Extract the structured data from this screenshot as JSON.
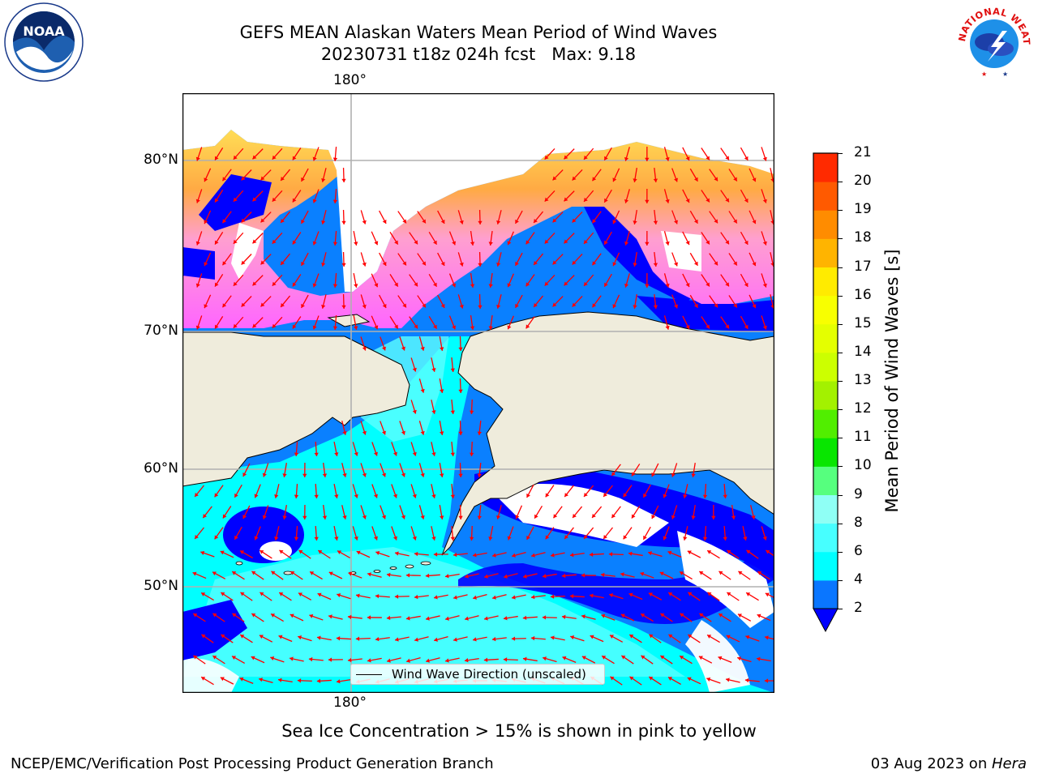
{
  "header": {
    "title_line1": "GEFS MEAN Alaskan Waters Mean Period of Wind Waves",
    "title_line2": "20230731 t18z 024h fcst   Max: 9.18"
  },
  "logos": {
    "left": {
      "name": "noaa-logo",
      "text": "NOAA"
    },
    "right": {
      "name": "national-weather-service-logo",
      "text": "NATIONAL WEATHER SERVICE"
    }
  },
  "map": {
    "lon_label_top": "180°",
    "lon_label_bottom": "180°",
    "lat_labels": [
      "80°N",
      "70°N",
      "60°N",
      "50°N"
    ],
    "colors": {
      "land": "#efecdc",
      "ocean_low": "#0000ff",
      "ocean_mid": "#0a80ff",
      "ocean_high": "#00ffff",
      "ocean_higher": "#5cffff",
      "ice_pink": "#ff66ff",
      "ice_orange": "#ffaa44",
      "ice_yellow": "#ffdd55",
      "arrow": "#ff0000",
      "grid": "#b0b0b0"
    },
    "legend": {
      "label": "Wind Wave Direction (unscaled)"
    }
  },
  "colorbar": {
    "label": "Mean Period of Wind Waves [s]",
    "ticks": [
      "2",
      "4",
      "6",
      "8",
      "9",
      "10",
      "11",
      "12",
      "13",
      "14",
      "15",
      "16",
      "17",
      "18",
      "19",
      "20",
      "21"
    ],
    "colors": [
      "#0a76ff",
      "#00ffff",
      "#47ffff",
      "#8ffff5",
      "#56ff7e",
      "#08e600",
      "#51ee00",
      "#a3f100",
      "#ccff00",
      "#e4ff00",
      "#f8ff00",
      "#ffeb00",
      "#ffb400",
      "#ff8c00",
      "#ff5a00",
      "#ff2a00"
    ],
    "under_color": "#0000ff"
  },
  "notes": {
    "sea_ice": "Sea Ice Concentration > 15% is shown in pink to yellow"
  },
  "footer": {
    "left": "NCEP/EMC/Verification Post Processing Product Generation Branch",
    "right_prefix": "03 Aug 2023 on ",
    "right_machine": "Hera"
  }
}
